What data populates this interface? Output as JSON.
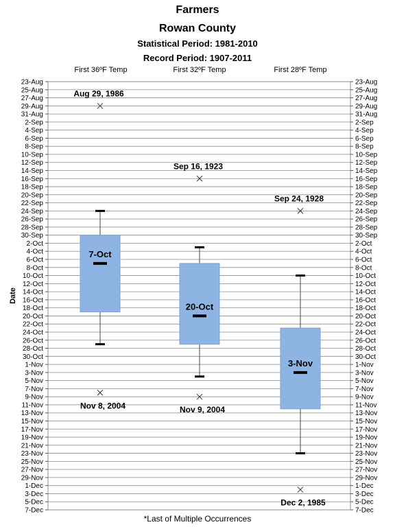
{
  "header": {
    "line1": "Farmers",
    "line2": "Rowan County",
    "line3": "Statistical Period: 1981-2010",
    "line4": "Record Period: 1907-2011"
  },
  "footnote": "*Last of Multiple Occurrences",
  "chart_data": {
    "type": "box",
    "ylabel": "Date",
    "orientation": "dates increase downward",
    "y_ticks": [
      "23-Aug",
      "25-Aug",
      "27-Aug",
      "29-Aug",
      "31-Aug",
      "2-Sep",
      "4-Sep",
      "6-Sep",
      "8-Sep",
      "10-Sep",
      "12-Sep",
      "14-Sep",
      "16-Sep",
      "18-Sep",
      "20-Sep",
      "22-Sep",
      "24-Sep",
      "26-Sep",
      "28-Sep",
      "30-Sep",
      "2-Oct",
      "4-Oct",
      "6-Oct",
      "8-Oct",
      "10-Oct",
      "12-Oct",
      "14-Oct",
      "16-Oct",
      "18-Oct",
      "20-Oct",
      "22-Oct",
      "24-Oct",
      "26-Oct",
      "28-Oct",
      "30-Oct",
      "1-Nov",
      "3-Nov",
      "5-Nov",
      "7-Nov",
      "9-Nov",
      "11-Nov",
      "13-Nov",
      "15-Nov",
      "17-Nov",
      "19-Nov",
      "21-Nov",
      "23-Nov",
      "25-Nov",
      "27-Nov",
      "29-Nov",
      "1-Dec",
      "3-Dec",
      "5-Dec",
      "7-Dec"
    ],
    "y_range": [
      "23-Aug",
      "7-Dec"
    ],
    "grid": true,
    "categories": [
      "First 36ºF Temp",
      "First 32ºF Temp",
      "First 28ºF Temp"
    ],
    "series": [
      {
        "whisker_low": "24-Sep",
        "q1": "30-Sep",
        "median": "7-Oct",
        "q3": "19-Oct",
        "whisker_high": "27-Oct",
        "median_label": "7-Oct",
        "record_early": "29-Aug",
        "record_early_label": "Aug 29, 1986",
        "record_late": "8-Nov",
        "record_late_label": "Nov 8, 2004"
      },
      {
        "whisker_low": "3-Oct",
        "q1": "7-Oct",
        "median": "20-Oct",
        "q3": "27-Oct",
        "whisker_high": "4-Nov",
        "median_label": "20-Oct",
        "record_early": "16-Sep",
        "record_early_label": "Sep 16, 1923",
        "record_late": "9-Nov",
        "record_late_label": "Nov 9, 2004"
      },
      {
        "whisker_low": "10-Oct",
        "q1": "23-Oct",
        "median": "3-Nov",
        "q3": "12-Nov",
        "whisker_high": "23-Nov",
        "median_label": "3-Nov",
        "record_early": "24-Sep",
        "record_early_label": "Sep 24, 1928",
        "record_late": "2-Dec",
        "record_late_label": "Dec 2, 1985"
      }
    ],
    "colors": {
      "box": "#8eb4e3",
      "box_border": "#7aa2d4",
      "grid": "#8c8c8c",
      "marks": "#000000"
    }
  }
}
